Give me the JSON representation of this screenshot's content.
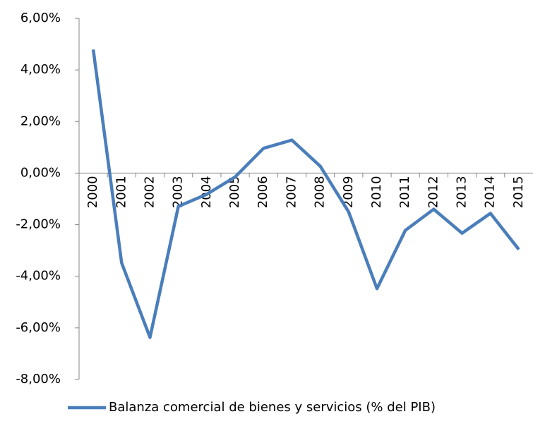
{
  "chart_data": {
    "type": "line",
    "categories": [
      "2000",
      "2001",
      "2002",
      "2003",
      "2004",
      "2005",
      "2006",
      "2007",
      "2008",
      "2009",
      "2010",
      "2011",
      "2012",
      "2013",
      "2014",
      "2015"
    ],
    "series": [
      {
        "name": "Balanza comercial de bienes y servicios (% del PIB)",
        "color": "#4a7ebb",
        "values": [
          4.79,
          -3.48,
          -6.37,
          -1.29,
          -0.82,
          -0.15,
          0.96,
          1.28,
          0.27,
          -1.5,
          -4.48,
          -2.22,
          -1.4,
          -2.33,
          -1.56,
          -2.96
        ]
      }
    ],
    "ylim": [
      -8,
      6
    ],
    "yticks": [
      {
        "value": -8,
        "label": "-8,00%"
      },
      {
        "value": -6,
        "label": "-6,00%"
      },
      {
        "value": -4,
        "label": "-4,00%"
      },
      {
        "value": -2,
        "label": "-2,00%"
      },
      {
        "value": 0,
        "label": "0,00%"
      },
      {
        "value": 2,
        "label": "2,00%"
      },
      {
        "value": 4,
        "label": "4,00%"
      },
      {
        "value": 6,
        "label": "6,00%"
      }
    ],
    "legend": "bottom"
  }
}
